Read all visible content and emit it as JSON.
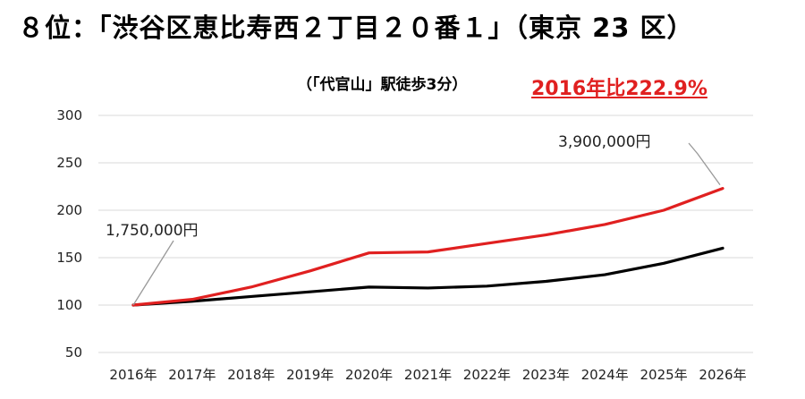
{
  "title": "８位：「渋谷区恵比寿西２丁目２０番１」（東京 23 区）",
  "subtitle": "（「代官山」駅徒歩3分）",
  "highlight": "2016年比222.9%",
  "chart_data": {
    "type": "line",
    "x": [
      "2016年",
      "2017年",
      "2018年",
      "2019年",
      "2020年",
      "2021年",
      "2022年",
      "2023年",
      "2024年",
      "2025年",
      "2026年"
    ],
    "series": [
      {
        "values": [
          100,
          106,
          119,
          136,
          155,
          156,
          165,
          174,
          185,
          200,
          223
        ],
        "color": "#e02020"
      },
      {
        "values": [
          100,
          104,
          109,
          114,
          119,
          118,
          120,
          125,
          132,
          144,
          160
        ],
        "color": "#000000"
      }
    ],
    "ylim": [
      50,
      300
    ],
    "yticks": [
      50,
      100,
      150,
      200,
      250,
      300
    ],
    "grid": true,
    "annotations": [
      {
        "text": "1,750,000円",
        "x": "2016年",
        "y": 100
      },
      {
        "text": "3,900,000円",
        "x": "2026年",
        "y": 223
      }
    ]
  }
}
